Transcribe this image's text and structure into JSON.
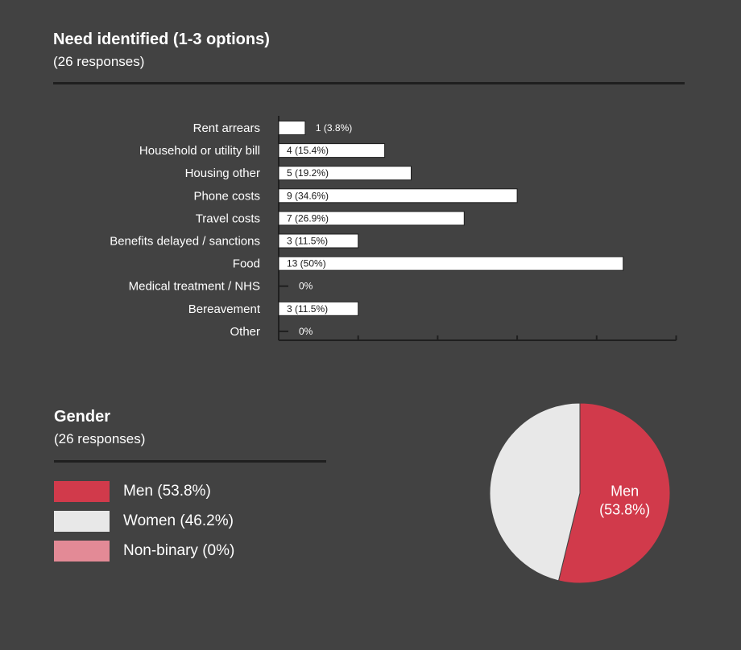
{
  "chart_data": [
    {
      "type": "bar",
      "orientation": "horizontal",
      "title": "Need identified (1-3 options)",
      "subtitle": "(26 responses)",
      "categories": [
        "Rent arrears",
        "Household or utility bill",
        "Housing other",
        "Phone costs",
        "Travel costs",
        "Benefits delayed / sanctions",
        "Food",
        "Medical treatment / NHS",
        "Bereavement",
        "Other"
      ],
      "values": [
        1,
        4,
        5,
        9,
        7,
        3,
        13,
        0,
        3,
        0
      ],
      "labels": [
        "1 (3.8%)",
        "4 (15.4%)",
        "5 (19.2%)",
        "9 (34.6%)",
        "7 (26.9%)",
        "3 (11.5%)",
        "13 (50%)",
        "0%",
        "3 (11.5%)",
        "0%"
      ],
      "xlim": [
        0,
        15
      ],
      "grid": false,
      "colors": {
        "bar": "#ffffff",
        "axis": "#1f1f1f",
        "label": "#1a1a1a"
      }
    },
    {
      "type": "pie",
      "title": "Gender",
      "subtitle": "(26 responses)",
      "slices": [
        {
          "name": "Men (53.8%)",
          "value": 53.8,
          "color": "#d13a4b",
          "inner_label": [
            "Men",
            "(53.8%)"
          ]
        },
        {
          "name": "Women (46.2%)",
          "value": 46.2,
          "color": "#e8e8e8"
        },
        {
          "name": "Non-binary (0%)",
          "value": 0,
          "color": "#e38a96"
        }
      ],
      "legend": "left"
    }
  ]
}
